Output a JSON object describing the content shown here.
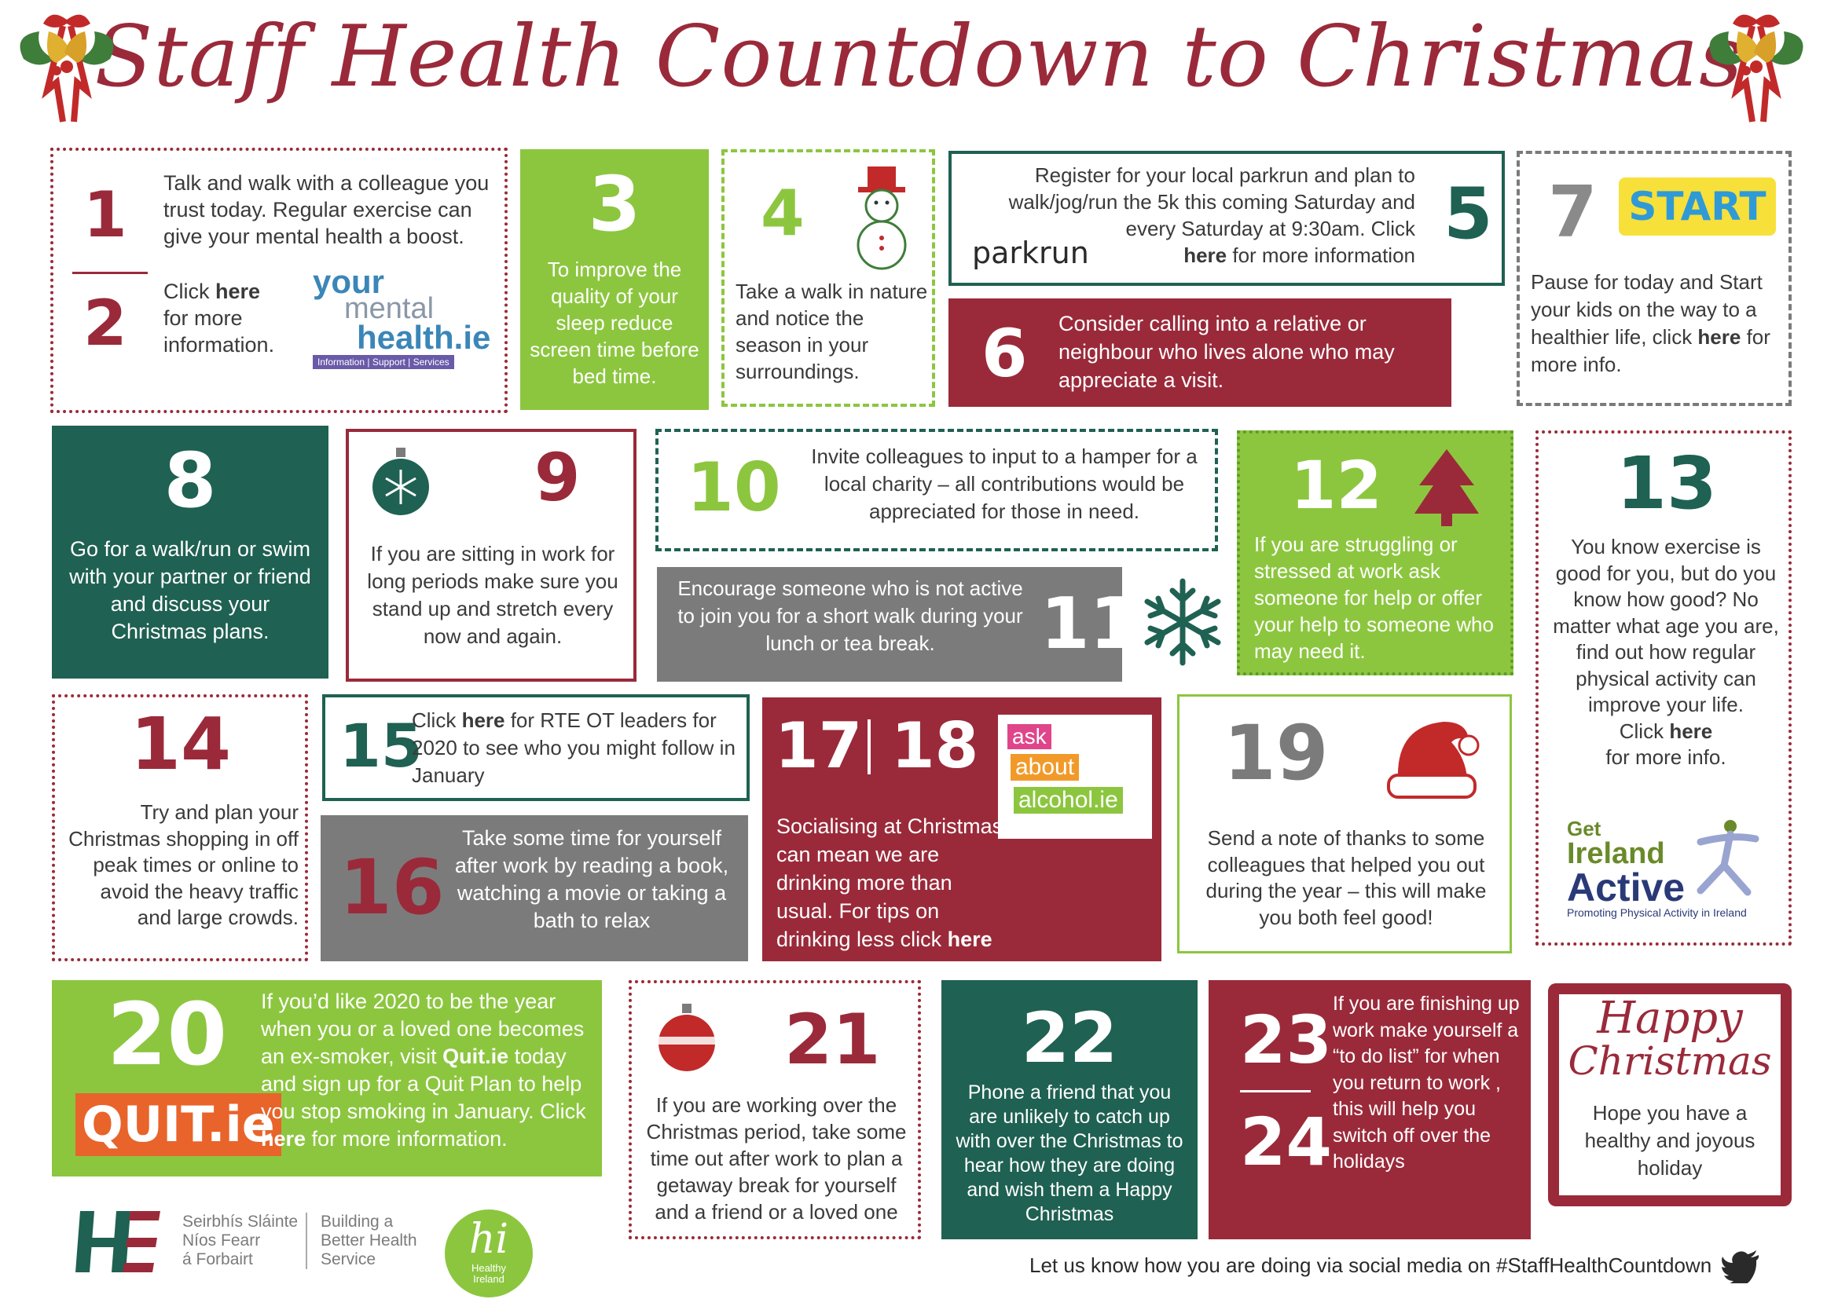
{
  "title": "Staff Health Countdown to Christmas",
  "days": {
    "d1": {
      "num": "1",
      "text": "Talk and walk with a colleague you trust today. Regular exercise can give your mental health a boost."
    },
    "d2": {
      "num": "2",
      "pre": "Click ",
      "link": "here",
      "post": " for more information."
    },
    "d3": {
      "num": "3",
      "text": "To improve the quality of your sleep reduce screen time before bed time."
    },
    "d4": {
      "num": "4",
      "text": "Take a walk in nature and notice the season in your surroundings."
    },
    "d5": {
      "num": "5",
      "text": "Register for your local  parkrun and plan to walk/jog/run the 5k  this coming Saturday and every Saturday at 9:30am. Click",
      "link": "here",
      "post": " for more information"
    },
    "d6": {
      "num": "6",
      "text": "Consider calling into a relative or neighbour who lives alone who may appreciate a visit."
    },
    "d7": {
      "num": "7",
      "pre": "Pause for today and Start your kids on the way to a healthier life, click ",
      "link": "here",
      "post": " for more info."
    },
    "d8": {
      "num": "8",
      "text": "Go for a walk/run or swim with your partner or friend and discuss your Christmas plans."
    },
    "d9": {
      "num": "9",
      "text": "If you are sitting in work for long periods make sure you stand up and stretch every now and again."
    },
    "d10": {
      "num": "10",
      "text": "Invite colleagues to input to a hamper for a local charity – all contributions would be appreciated for those in need."
    },
    "d11": {
      "num": "11",
      "text": "Encourage someone who is not active to join you for a short walk during your lunch or tea break."
    },
    "d12": {
      "num": "12",
      "text": "If you are struggling or stressed at work ask someone for help or offer your help to someone who may need it."
    },
    "d13": {
      "num": "13",
      "text": "You know exercise is good for you, but do you know how good? No matter what age you are, find out how regular physical activity can improve your life.",
      "pre2": "Click ",
      "link": "here",
      "post": "for more info."
    },
    "d14": {
      "num": "14",
      "text": "Try and plan your Christmas shopping in off peak times or online to avoid the heavy traffic and large crowds."
    },
    "d15": {
      "num": "15",
      "pre": "Click ",
      "link": "here",
      "post": " for RTE OT leaders for 2020 to see who you might follow in January"
    },
    "d16": {
      "num": "16",
      "text": "Take some time for yourself after work by reading a book, watching a movie or taking a bath to relax"
    },
    "d17": {
      "num": "17",
      "num2": "18",
      "pre": "Socialising at Christmas can mean we are drinking more than usual.  For tips on drinking less click ",
      "link": "here"
    },
    "d19": {
      "num": "19",
      "text": "Send a note of thanks to some colleagues that helped you out during the year – this will make you both feel good!"
    },
    "d20": {
      "num": "20",
      "pre": "If you’d like 2020 to be the year when you or a loved one becomes an ex-smoker, visit ",
      "bold": "Quit.ie",
      "mid": " today and sign up for a Quit Plan to help you stop smoking in January. Click ",
      "link": "here",
      "post": " for more information."
    },
    "d21": {
      "num": "21",
      "text": "If you are working over the Christmas period, take some time out after work to plan a getaway break for yourself and a friend or a loved one"
    },
    "d22": {
      "num": "22",
      "text": "Phone a friend that you are unlikely to catch up with over the Christmas to hear how they are doing and wish them a Happy Christmas"
    },
    "d23": {
      "num": "23",
      "num2": "24",
      "text": "If you are finishing up work make yourself a “to do list” for when you return to work , this will help you switch off  over the holidays"
    }
  },
  "happy": {
    "line1": "Happy",
    "line2": "Christmas",
    "text": "Hope you have a healthy and joyous holiday"
  },
  "logos": {
    "ymh_1": "your",
    "ymh_2": "mental",
    "ymh_3": "health.ie",
    "ymh_tag": "Information  |  Support  |  Services",
    "parkrun": "parkrun",
    "start": "START",
    "aaa_1": "ask",
    "aaa_2": "about",
    "aaa_3": "alcohol.ie",
    "gia_1": "Get",
    "gia_2": "Ireland",
    "gia_3": "Active",
    "gia_tag": "Promoting Physical Activity in Ireland",
    "quit": "QUIT.ie",
    "hse_1": "Seirbhís Sláinte",
    "hse_2": "Níos Fearr",
    "hse_3": "á Forbairt",
    "hse_4": "Building a",
    "hse_5": "Better Health",
    "hse_6": "Service",
    "hi_1": "hi",
    "hi_2": "Healthy",
    "hi_3": "Ireland"
  },
  "footer": "Let us know how you are doing via social media on #StaffHealthCountdown",
  "colors": {
    "red": "#9a2a3a",
    "teal": "#1f6152",
    "green": "#8cc63f",
    "grey": "#7b7b7b"
  }
}
